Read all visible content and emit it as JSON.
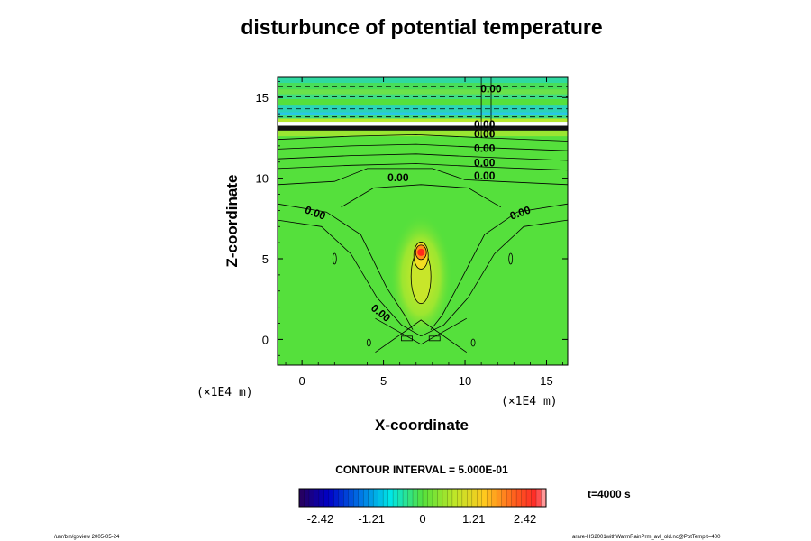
{
  "chart_data": {
    "type": "heatmap",
    "title": "disturbunce of potential temperature",
    "xlabel": "X-coordinate",
    "ylabel": "Z-coordinate",
    "x_unit": "(×1E4 m)",
    "z_unit": "(×1E4 m)",
    "xlim": [
      -1.5,
      16.3
    ],
    "ylim": [
      -1.6,
      16.3
    ],
    "x_ticks": [
      0,
      5,
      10,
      15
    ],
    "y_ticks": [
      0,
      5,
      10,
      15
    ],
    "x_tick_labels": [
      "0",
      "5",
      "10",
      "15"
    ],
    "y_tick_labels": [
      "0",
      "5",
      "10",
      "15"
    ],
    "contour_labels": [
      {
        "text": "0.00",
        "x": 11.6,
        "z": 15.5,
        "angle": 0
      },
      {
        "text": "0.00",
        "x": 11.2,
        "z": 13.3,
        "angle": 0
      },
      {
        "text": "0.00",
        "x": 11.2,
        "z": 12.7,
        "angle": 0
      },
      {
        "text": "0.00",
        "x": 11.2,
        "z": 11.8,
        "angle": 0
      },
      {
        "text": "0.00",
        "x": 11.2,
        "z": 10.9,
        "angle": 0
      },
      {
        "text": "0.00",
        "x": 11.2,
        "z": 10.1,
        "angle": 0
      },
      {
        "text": "0.00",
        "x": 5.9,
        "z": 10.0,
        "angle": 0
      },
      {
        "text": "0.00",
        "x": 0.8,
        "z": 7.8,
        "angle": 20
      },
      {
        "text": "0.00",
        "x": 13.4,
        "z": 7.8,
        "angle": -20
      },
      {
        "text": "0.00",
        "x": 4.8,
        "z": 1.6,
        "angle": 38
      }
    ],
    "contour_interval_text": "CONTOUR INTERVAL = 5.000E-01",
    "time_text": "t=4000 s",
    "colorbar": {
      "min": -2.92,
      "max": 2.92,
      "ticks": [
        -2.42,
        -1.21,
        0,
        1.21,
        2.42
      ],
      "tick_labels": [
        "-2.42",
        "-1.21",
        "0",
        "1.21",
        "2.42"
      ]
    },
    "features": {
      "warm_bubble_center": {
        "x": 7.3,
        "z": 5.4,
        "max": 2.4
      },
      "stratified_layer_z_range": [
        12.6,
        16.2
      ]
    },
    "grid": false,
    "legend": "none"
  },
  "footer": {
    "left": "/usr/bin/gpview 2005-05-24",
    "right": "arare-HS2001withWarmRainPrm_avl_old.nc@PotTemp,t=400"
  },
  "colors": {
    "background_field": "#55e03c",
    "colorbar_low": "#3b007a",
    "colorbar_mid": "#56e13c",
    "colorbar_high": "#ff2a2a"
  }
}
